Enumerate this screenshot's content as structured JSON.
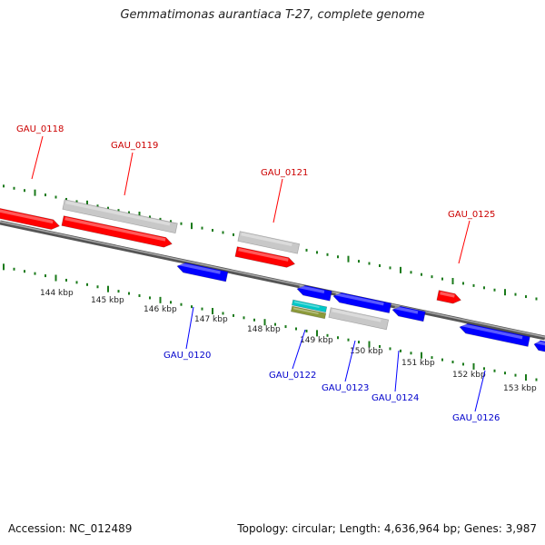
{
  "title": "Gemmatimonas aurantiaca T-27, complete genome",
  "footer": {
    "accession_label": "Accession: NC_012489",
    "summary_label": "Topology: circular; Length: 4,636,964 bp; Genes: 3,987"
  },
  "colors": {
    "forward_gene": "#ff0000",
    "reverse_gene": "#0000ff",
    "other_feature": "#c8c8c8",
    "rna_feature_a": "#00c8c8",
    "rna_feature_b": "#8c9a3a",
    "tick": "#1a7a1a",
    "backbone": "#808080",
    "forward_label": "#cc0000",
    "reverse_label": "#0000cc"
  },
  "kbp_labels": [
    "144 kbp",
    "145 kbp",
    "146 kbp",
    "147 kbp",
    "148 kbp",
    "149 kbp",
    "150 kbp",
    "151 kbp",
    "152 kbp",
    "153 kbp"
  ],
  "forward_gene_labels": [
    "GAU_0118",
    "GAU_0119",
    "GAU_0121",
    "GAU_0125"
  ],
  "reverse_gene_labels": [
    "GAU_0120",
    "GAU_0122",
    "GAU_0123",
    "GAU_0124",
    "GAU_0126"
  ]
}
